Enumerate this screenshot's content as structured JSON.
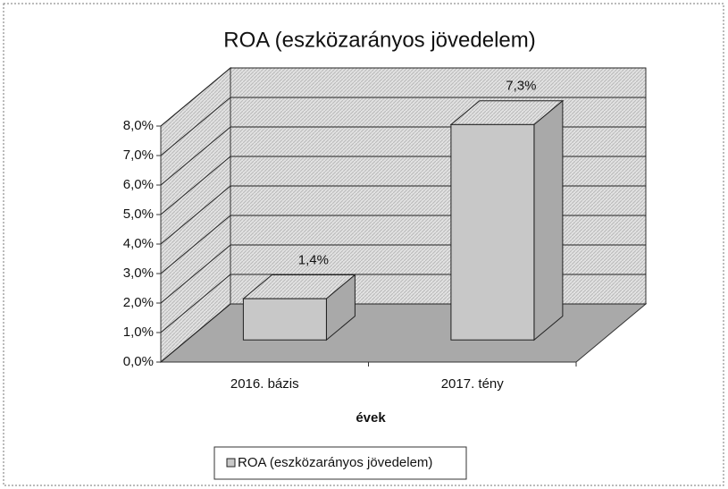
{
  "chart_data": {
    "type": "bar3d",
    "title": "ROA (eszközarányos jövedelem)",
    "categories": [
      "2016. bázis",
      "2017. tény"
    ],
    "series": [
      {
        "name": "ROA (eszközarányos jövedelem)",
        "color": "#c8c8c8",
        "values": [
          1.4,
          7.3
        ],
        "value_labels": [
          "1,4%",
          "7,3%"
        ]
      }
    ],
    "xlabel": "évek",
    "ylim": [
      0,
      8
    ],
    "yticks": [
      {
        "value": 0,
        "label": "0,0%"
      },
      {
        "value": 1,
        "label": "1,0%"
      },
      {
        "value": 2,
        "label": "2,0%"
      },
      {
        "value": 3,
        "label": "3,0%"
      },
      {
        "value": 4,
        "label": "4,0%"
      },
      {
        "value": 5,
        "label": "5,0%"
      },
      {
        "value": 6,
        "label": "6,0%"
      },
      {
        "value": 7,
        "label": "7,0%"
      },
      {
        "value": 8,
        "label": "8,0%"
      }
    ],
    "grid": true,
    "legend": "bottom"
  }
}
